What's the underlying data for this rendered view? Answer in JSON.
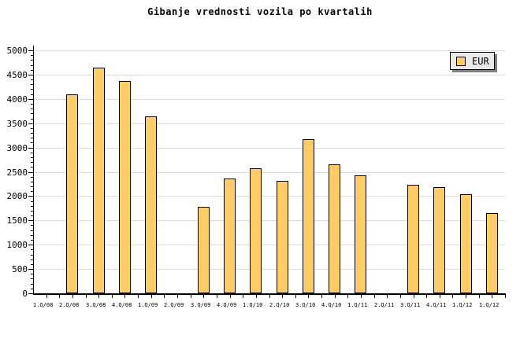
{
  "title": "Gibanje vrednosti vozila po kvartalih",
  "legend": {
    "label": "EUR",
    "swatch_color": "#FFCC66",
    "position": "top-right"
  },
  "colors": {
    "background": "#FFFFFF",
    "bar_fill": "#FFCC66",
    "bar_border": "#000000",
    "gridline": "#DCDCDC",
    "axis": "#000000",
    "legend_bg": "#E9E9E9",
    "legend_shadow": "#808080",
    "text": "#000000"
  },
  "chart_data": {
    "type": "bar",
    "title": "Gibanje vrednosti vozila po kvartalih",
    "series_name": "EUR",
    "categories": [
      "1.Q/08",
      "2.Q/08",
      "3.Q/08",
      "4.Q/08",
      "1.Q/09",
      "2.Q/09",
      "3.Q/09",
      "4.Q/09",
      "1.Q/10",
      "2.Q/10",
      "3.Q/10",
      "4.Q/10",
      "1.Q/11",
      "2.Q/11",
      "3.Q/11",
      "4.Q/11",
      "1.Q/12",
      "1.Q/12"
    ],
    "values": [
      null,
      4100,
      4650,
      4370,
      3640,
      null,
      1780,
      2370,
      2580,
      2310,
      3170,
      2650,
      2430,
      null,
      2240,
      2180,
      2040,
      1650
    ],
    "xlabel": "",
    "ylabel": "",
    "ylim": [
      0,
      5000
    ],
    "ytick_step": 500,
    "ytick_minor_step": 100,
    "ytick_labels": [
      "0",
      "500",
      "1000",
      "1500",
      "2000",
      "2500",
      "3000",
      "3500",
      "4000",
      "4500",
      "5000"
    ],
    "grid": "horizontal",
    "legend_position": "top-right"
  }
}
